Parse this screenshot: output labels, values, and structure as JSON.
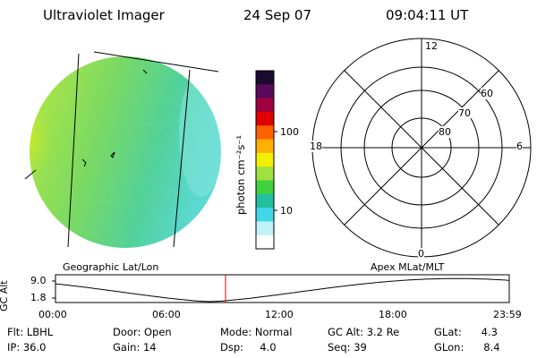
{
  "header": {
    "title": "Ultraviolet Imager",
    "date": "24 Sep 07",
    "time": "09:04:11 UT"
  },
  "colorbar": {
    "unit_label": "photon cm⁻²s⁻¹",
    "ticks": [
      "100",
      "10"
    ],
    "colors": [
      "#1a0a2e",
      "#5a0a5a",
      "#a00040",
      "#e00000",
      "#ff6000",
      "#ffb000",
      "#f0f000",
      "#a0e040",
      "#40d040",
      "#20c0a0",
      "#40d8e8",
      "#c0f0f8",
      "#ffffff"
    ]
  },
  "polar": {
    "mlt_labels": [
      "12",
      "18",
      "6",
      "0"
    ],
    "lat_labels": [
      "60",
      "70",
      "80"
    ]
  },
  "track": {
    "left_label": "Geographic Lat/Lon",
    "right_label": "Apex MLat/MLT",
    "y_axis_label": "GC Alt",
    "y_ticks": [
      "9.0",
      "1.8"
    ],
    "x_ticks": [
      "00:00",
      "06:00",
      "12:00",
      "18:00",
      "23:59"
    ],
    "marker_color": "#e00000"
  },
  "info": {
    "flt": "Flt: LBHL",
    "ip": "IP: 36.0",
    "door": "Door: Open",
    "gain": "Gain: 14",
    "mode": "Mode: Normal",
    "dsp": "Dsp:     4.0",
    "gc_alt": "GC Alt: 3.2 Re",
    "seq": "Seq: 39",
    "glat": "GLat:      4.3",
    "glon": "GLon:      8.4"
  }
}
